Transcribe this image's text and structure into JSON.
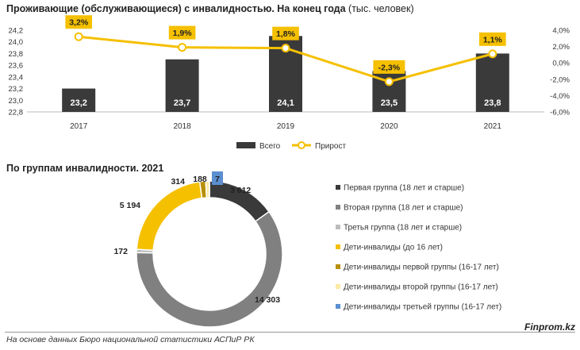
{
  "chart_data": [
    {
      "type": "bar+line",
      "title": "Проживающие (обслуживающиеся) с инвалидностью. На конец года",
      "unit": "(тыс. человек)",
      "categories": [
        "2017",
        "2018",
        "2019",
        "2020",
        "2021"
      ],
      "series": [
        {
          "name": "Всего",
          "kind": "bar",
          "axis": "left",
          "color": "#3a3a3a",
          "values": [
            23.2,
            23.7,
            24.1,
            23.5,
            23.8
          ],
          "labels": [
            "23,2",
            "23,7",
            "24,1",
            "23,5",
            "23,8"
          ]
        },
        {
          "name": "Прирост",
          "kind": "line",
          "axis": "right",
          "color": "#f5c000",
          "values": [
            3.2,
            1.9,
            1.8,
            -2.3,
            1.1
          ],
          "labels": [
            "3,2%",
            "1,9%",
            "1,8%",
            "-2,3%",
            "1,1%"
          ]
        }
      ],
      "left_axis": {
        "ylim": [
          22.8,
          24.2
        ],
        "ticks": [
          "22,8",
          "23,0",
          "23,2",
          "23,4",
          "23,6",
          "23,8",
          "24,0",
          "24,2"
        ]
      },
      "right_axis": {
        "ylim": [
          -6,
          4
        ],
        "ticks": [
          "4,0%",
          "2,0%",
          "0,0%",
          "-2,0%",
          "-4,0%",
          "-6,0%"
        ]
      },
      "legend_position": "bottom"
    },
    {
      "type": "pie",
      "title": "По группам инвалидности. 2021",
      "slices": [
        {
          "name": "Первая группа (18 лет и старше)",
          "value": 3612,
          "label": "3 612",
          "color": "#3a3a3a"
        },
        {
          "name": "Вторая группа (18 лет и старше)",
          "value": 14303,
          "label": "14 303",
          "color": "#808080"
        },
        {
          "name": "Третья группа (18 лет и старше)",
          "value": 172,
          "label": "172",
          "color": "#bdbdbd"
        },
        {
          "name": "Дети-инвалиды (до 16 лет)",
          "value": 5194,
          "label": "5 194",
          "color": "#f5c000"
        },
        {
          "name": "Дети-инвалиды первой группы (16-17 лет)",
          "value": 314,
          "label": "314",
          "color": "#b8900a"
        },
        {
          "name": "Дети-инвалиды второй группы (16-17 лет)",
          "value": 188,
          "label": "188",
          "color": "#fde9a6"
        },
        {
          "name": "Дети-инвалиды третьей группы (16-17 лет)",
          "value": 7,
          "label": "7",
          "color": "#5b8fd0"
        }
      ],
      "legend_position": "right"
    }
  ],
  "footer": "На основе данных Бюро национальной статистики АСПиР РК",
  "brand": "Finprom.kz"
}
